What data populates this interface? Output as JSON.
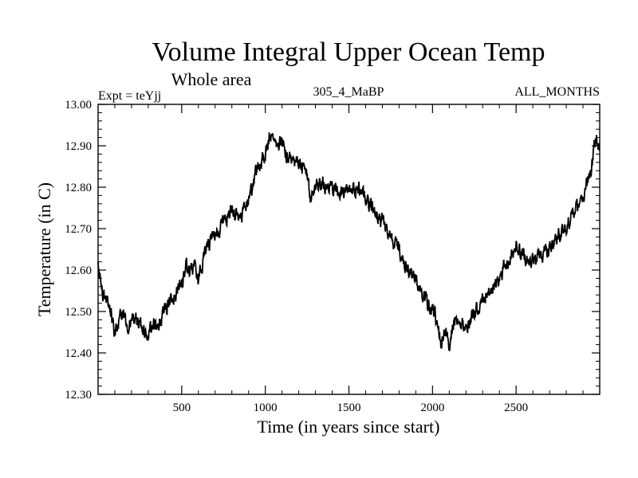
{
  "chart_data": {
    "type": "line",
    "title": "Volume Integral Upper Ocean Temp",
    "subtitle": "Whole area",
    "header_left": "Expt = teYjj",
    "header_center": "305_4_MaBP",
    "header_right": "ALL_MONTHS",
    "xlabel": "Time (in years since start)",
    "ylabel": "Temperature (in C)",
    "xlim": [
      0,
      3000
    ],
    "ylim": [
      12.3,
      13.0
    ],
    "xticks": [
      500,
      1000,
      1500,
      2000,
      2500
    ],
    "xtick_labels": [
      "500",
      "1000",
      "1500",
      "2000",
      "2500"
    ],
    "yticks": [
      12.3,
      12.4,
      12.5,
      12.6,
      12.7,
      12.8,
      12.9,
      13.0
    ],
    "ytick_labels": [
      "12.30",
      "12.40",
      "12.50",
      "12.60",
      "12.70",
      "12.80",
      "12.90",
      "13.00"
    ],
    "line_color": "#000000",
    "series": [
      {
        "name": "Volume integral upper ocean temperature",
        "x": [
          0,
          25,
          50,
          75,
          100,
          125,
          150,
          175,
          200,
          250,
          300,
          325,
          350,
          375,
          400,
          450,
          500,
          525,
          550,
          575,
          600,
          625,
          650,
          700,
          750,
          800,
          850,
          900,
          925,
          950,
          975,
          1000,
          1025,
          1050,
          1075,
          1100,
          1125,
          1150,
          1175,
          1200,
          1250,
          1275,
          1300,
          1350,
          1400,
          1450,
          1500,
          1550,
          1600,
          1650,
          1700,
          1750,
          1800,
          1850,
          1900,
          1950,
          2000,
          2025,
          2050,
          2075,
          2100,
          2125,
          2150,
          2200,
          2250,
          2300,
          2350,
          2400,
          2450,
          2500,
          2550,
          2600,
          2650,
          2700,
          2750,
          2800,
          2850,
          2900,
          2925,
          2950,
          2975,
          3000
        ],
        "y": [
          12.62,
          12.55,
          12.53,
          12.5,
          12.45,
          12.47,
          12.5,
          12.46,
          12.48,
          12.47,
          12.44,
          12.48,
          12.46,
          12.48,
          12.51,
          12.53,
          12.57,
          12.61,
          12.6,
          12.61,
          12.58,
          12.62,
          12.66,
          12.69,
          12.72,
          12.74,
          12.73,
          12.77,
          12.8,
          12.85,
          12.85,
          12.89,
          12.93,
          12.92,
          12.9,
          12.91,
          12.88,
          12.87,
          12.86,
          12.86,
          12.83,
          12.76,
          12.81,
          12.81,
          12.8,
          12.79,
          12.79,
          12.8,
          12.77,
          12.74,
          12.72,
          12.68,
          12.65,
          12.6,
          12.58,
          12.53,
          12.51,
          12.47,
          12.43,
          12.45,
          12.42,
          12.47,
          12.48,
          12.46,
          12.5,
          12.53,
          12.55,
          12.58,
          12.62,
          12.66,
          12.63,
          12.62,
          12.64,
          12.65,
          12.68,
          12.7,
          12.75,
          12.77,
          12.81,
          12.84,
          12.92,
          12.89
        ]
      }
    ]
  }
}
